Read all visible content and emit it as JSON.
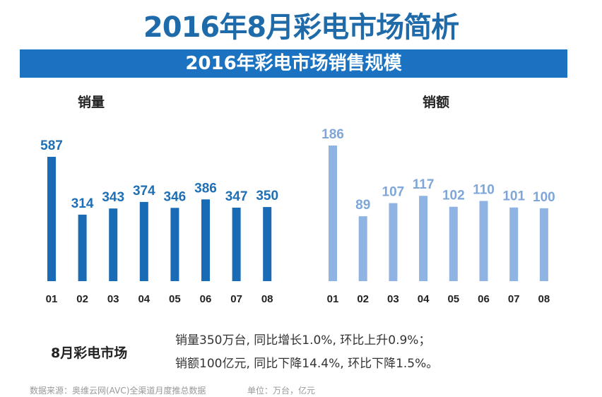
{
  "title": "2016年8月彩电市场简析",
  "band_title": "2016年彩电市场销售规模",
  "chart_data": [
    {
      "type": "bar",
      "title": "销量",
      "categories": [
        "01",
        "02",
        "03",
        "04",
        "05",
        "06",
        "07",
        "08"
      ],
      "values": [
        587,
        314,
        343,
        374,
        346,
        386,
        347,
        350
      ],
      "color": "#1a6bb5",
      "label_color": "#1f6fb5"
    },
    {
      "type": "bar",
      "title": "销额",
      "categories": [
        "01",
        "02",
        "03",
        "04",
        "05",
        "06",
        "07",
        "08"
      ],
      "values": [
        186,
        89,
        107,
        117,
        102,
        110,
        101,
        100
      ],
      "color": "#8fb4e3",
      "label_color": "#7ea6d8"
    }
  ],
  "summary": {
    "label": "8月彩电市场",
    "line1": "销量350万台, 同比增长1.0%, 环比上升0.9%；",
    "line2": "销额100亿元, 同比下降14.4%, 环比下降1.5%。"
  },
  "footer": {
    "source": "数据来源：奥维云网(AVC)全渠道月度推总数据",
    "unit": "单位：万台，亿元"
  }
}
